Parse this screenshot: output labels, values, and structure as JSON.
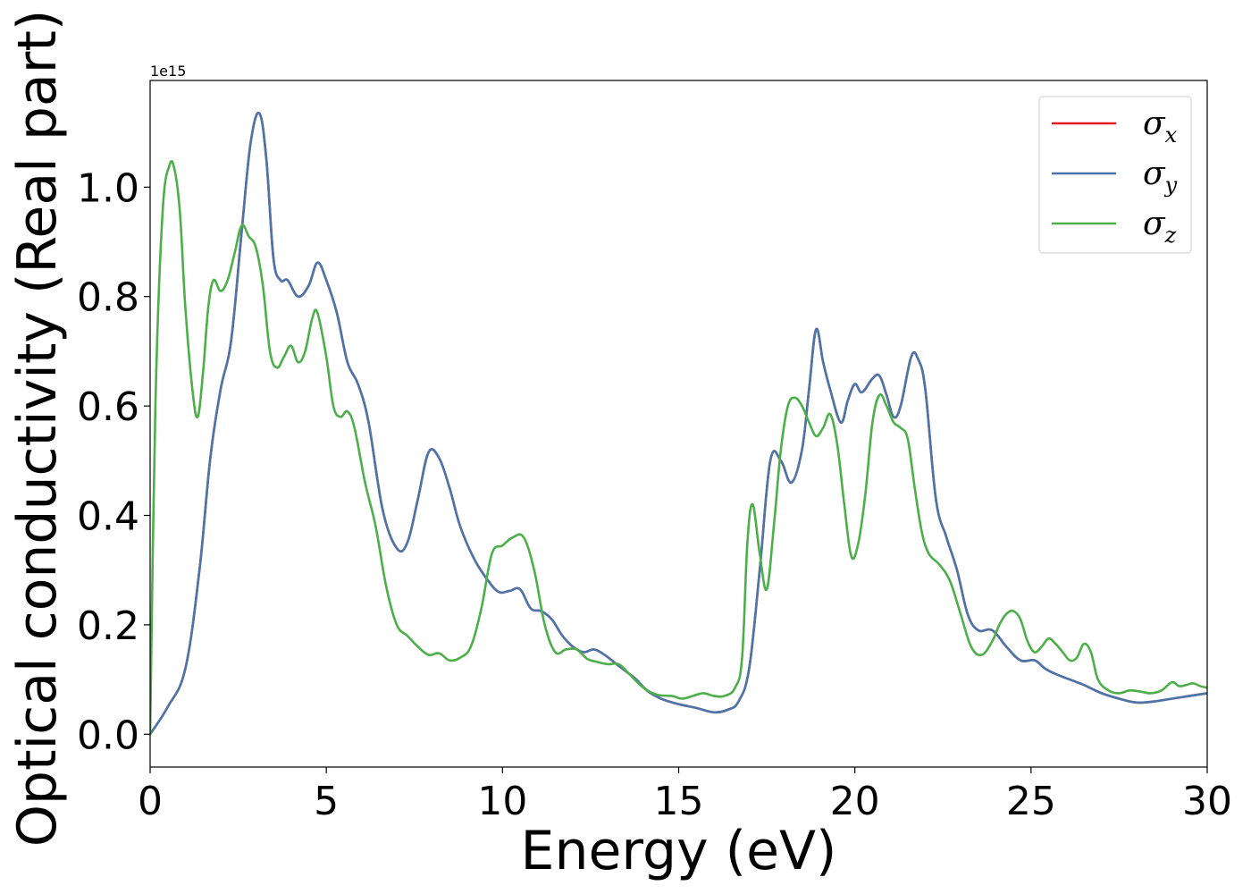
{
  "chart_data": {
    "type": "line",
    "xlabel": "Energy (eV)",
    "ylabel": "Optical conductivity (Real part)",
    "y_offset_text": "1e15",
    "xlim": [
      0,
      30
    ],
    "ylim": [
      -0.06,
      1.195
    ],
    "xticks": [
      0,
      5,
      10,
      15,
      20,
      25,
      30
    ],
    "xtick_labels": [
      "0",
      "5",
      "10",
      "15",
      "20",
      "25",
      "30"
    ],
    "yticks": [
      0.0,
      0.2,
      0.4,
      0.6,
      0.8,
      1.0
    ],
    "ytick_labels": [
      "0.0",
      "0.2",
      "0.4",
      "0.6",
      "0.8",
      "1.0"
    ],
    "grid": false,
    "legend_position": "top-right",
    "series": [
      {
        "name": "σx",
        "legend_symbol": "σ",
        "legend_subscript": "x",
        "color": "#e41a1c",
        "x": [
          0,
          0.5,
          1.0,
          1.4,
          1.7,
          2.0,
          2.3,
          2.6,
          2.85,
          3.1,
          3.3,
          3.5,
          3.7,
          3.9,
          4.2,
          4.5,
          4.75,
          5.0,
          5.3,
          5.6,
          5.9,
          6.2,
          6.6,
          7.0,
          7.3,
          7.6,
          7.9,
          8.2,
          8.5,
          8.8,
          9.2,
          9.6,
          9.9,
          10.2,
          10.5,
          10.8,
          11.1,
          11.4,
          11.7,
          12.0,
          12.3,
          12.6,
          12.9,
          13.2,
          13.5,
          13.8,
          14.1,
          14.5,
          15.0,
          15.5,
          16.0,
          16.4,
          16.7,
          17.0,
          17.3,
          17.6,
          17.9,
          18.2,
          18.5,
          18.7,
          18.9,
          19.1,
          19.3,
          19.6,
          19.8,
          20.0,
          20.2,
          20.5,
          20.7,
          20.9,
          21.1,
          21.3,
          21.6,
          21.8,
          22.0,
          22.3,
          22.6,
          22.9,
          23.2,
          23.5,
          23.9,
          24.3,
          24.7,
          25.1,
          25.4,
          25.7,
          26.1,
          26.5,
          27.0,
          27.5,
          28.0,
          28.5,
          29.0,
          29.5,
          30.0
        ],
        "y": [
          0.0,
          0.05,
          0.12,
          0.3,
          0.5,
          0.63,
          0.72,
          0.92,
          1.08,
          1.135,
          1.05,
          0.87,
          0.83,
          0.83,
          0.8,
          0.82,
          0.862,
          0.83,
          0.77,
          0.68,
          0.64,
          0.57,
          0.41,
          0.34,
          0.35,
          0.43,
          0.515,
          0.505,
          0.45,
          0.38,
          0.32,
          0.28,
          0.26,
          0.262,
          0.265,
          0.23,
          0.225,
          0.21,
          0.18,
          0.16,
          0.15,
          0.155,
          0.145,
          0.13,
          0.115,
          0.1,
          0.08,
          0.065,
          0.055,
          0.048,
          0.04,
          0.045,
          0.06,
          0.12,
          0.3,
          0.5,
          0.5,
          0.46,
          0.52,
          0.63,
          0.74,
          0.68,
          0.63,
          0.57,
          0.61,
          0.64,
          0.625,
          0.65,
          0.655,
          0.62,
          0.58,
          0.6,
          0.69,
          0.685,
          0.63,
          0.43,
          0.36,
          0.3,
          0.22,
          0.19,
          0.19,
          0.16,
          0.135,
          0.135,
          0.12,
          0.11,
          0.1,
          0.09,
          0.075,
          0.065,
          0.058,
          0.06,
          0.065,
          0.07,
          0.075
        ]
      },
      {
        "name": "σy",
        "legend_symbol": "σ",
        "legend_subscript": "y",
        "color": "#4a76ab",
        "x": [
          0,
          0.5,
          1.0,
          1.4,
          1.7,
          2.0,
          2.3,
          2.6,
          2.85,
          3.1,
          3.3,
          3.5,
          3.7,
          3.9,
          4.2,
          4.5,
          4.75,
          5.0,
          5.3,
          5.6,
          5.9,
          6.2,
          6.6,
          7.0,
          7.3,
          7.6,
          7.9,
          8.2,
          8.5,
          8.8,
          9.2,
          9.6,
          9.9,
          10.2,
          10.5,
          10.8,
          11.1,
          11.4,
          11.7,
          12.0,
          12.3,
          12.6,
          12.9,
          13.2,
          13.5,
          13.8,
          14.1,
          14.5,
          15.0,
          15.5,
          16.0,
          16.4,
          16.7,
          17.0,
          17.3,
          17.6,
          17.9,
          18.2,
          18.5,
          18.7,
          18.9,
          19.1,
          19.3,
          19.6,
          19.8,
          20.0,
          20.2,
          20.5,
          20.7,
          20.9,
          21.1,
          21.3,
          21.6,
          21.8,
          22.0,
          22.3,
          22.6,
          22.9,
          23.2,
          23.5,
          23.9,
          24.3,
          24.7,
          25.1,
          25.4,
          25.7,
          26.1,
          26.5,
          27.0,
          27.5,
          28.0,
          28.5,
          29.0,
          29.5,
          30.0
        ],
        "y": [
          0.0,
          0.05,
          0.12,
          0.3,
          0.5,
          0.63,
          0.72,
          0.92,
          1.08,
          1.135,
          1.05,
          0.87,
          0.83,
          0.83,
          0.8,
          0.82,
          0.862,
          0.83,
          0.77,
          0.68,
          0.64,
          0.57,
          0.41,
          0.34,
          0.35,
          0.43,
          0.515,
          0.505,
          0.45,
          0.38,
          0.32,
          0.28,
          0.26,
          0.262,
          0.265,
          0.23,
          0.225,
          0.21,
          0.18,
          0.16,
          0.15,
          0.155,
          0.145,
          0.13,
          0.115,
          0.1,
          0.08,
          0.065,
          0.055,
          0.048,
          0.04,
          0.045,
          0.06,
          0.12,
          0.3,
          0.5,
          0.5,
          0.46,
          0.52,
          0.63,
          0.74,
          0.68,
          0.63,
          0.57,
          0.61,
          0.64,
          0.625,
          0.65,
          0.655,
          0.62,
          0.58,
          0.6,
          0.69,
          0.685,
          0.63,
          0.43,
          0.36,
          0.3,
          0.22,
          0.19,
          0.19,
          0.16,
          0.135,
          0.135,
          0.12,
          0.11,
          0.1,
          0.09,
          0.075,
          0.065,
          0.058,
          0.06,
          0.065,
          0.07,
          0.075
        ]
      },
      {
        "name": "σz",
        "legend_symbol": "σ",
        "legend_subscript": "z",
        "color": "#4daf4a",
        "x": [
          0,
          0.15,
          0.35,
          0.55,
          0.7,
          0.85,
          1.0,
          1.2,
          1.35,
          1.5,
          1.65,
          1.8,
          2.0,
          2.2,
          2.4,
          2.6,
          2.8,
          3.0,
          3.2,
          3.4,
          3.6,
          3.8,
          4.0,
          4.2,
          4.4,
          4.6,
          4.75,
          5.0,
          5.2,
          5.4,
          5.6,
          5.8,
          6.1,
          6.4,
          6.7,
          7.0,
          7.3,
          7.6,
          7.9,
          8.2,
          8.5,
          8.8,
          9.1,
          9.4,
          9.7,
          10.0,
          10.3,
          10.6,
          10.9,
          11.2,
          11.5,
          11.8,
          12.1,
          12.4,
          12.7,
          13.0,
          13.3,
          13.6,
          14.0,
          14.4,
          14.8,
          15.1,
          15.4,
          15.7,
          16.0,
          16.3,
          16.6,
          16.8,
          16.95,
          17.1,
          17.3,
          17.5,
          17.7,
          17.9,
          18.1,
          18.3,
          18.5,
          18.7,
          18.9,
          19.1,
          19.3,
          19.5,
          19.7,
          19.9,
          20.1,
          20.3,
          20.5,
          20.7,
          20.9,
          21.1,
          21.3,
          21.5,
          21.7,
          21.9,
          22.1,
          22.4,
          22.7,
          23.0,
          23.3,
          23.6,
          23.9,
          24.1,
          24.3,
          24.5,
          24.7,
          24.9,
          25.1,
          25.3,
          25.5,
          25.7,
          25.9,
          26.1,
          26.3,
          26.5,
          26.7,
          26.9,
          27.2,
          27.5,
          27.8,
          28.1,
          28.4,
          28.7,
          29.0,
          29.2,
          29.4,
          29.6,
          29.8,
          30.0
        ],
        "y": [
          0.0,
          0.6,
          0.95,
          1.04,
          1.03,
          0.95,
          0.78,
          0.63,
          0.58,
          0.66,
          0.78,
          0.83,
          0.81,
          0.83,
          0.88,
          0.93,
          0.91,
          0.89,
          0.82,
          0.7,
          0.67,
          0.69,
          0.71,
          0.68,
          0.7,
          0.76,
          0.77,
          0.69,
          0.6,
          0.58,
          0.59,
          0.56,
          0.46,
          0.38,
          0.27,
          0.2,
          0.18,
          0.16,
          0.145,
          0.148,
          0.135,
          0.14,
          0.16,
          0.23,
          0.33,
          0.345,
          0.36,
          0.36,
          0.3,
          0.2,
          0.15,
          0.155,
          0.155,
          0.138,
          0.132,
          0.128,
          0.128,
          0.11,
          0.085,
          0.072,
          0.07,
          0.065,
          0.07,
          0.075,
          0.07,
          0.07,
          0.085,
          0.14,
          0.35,
          0.42,
          0.33,
          0.265,
          0.38,
          0.52,
          0.6,
          0.615,
          0.6,
          0.57,
          0.545,
          0.56,
          0.585,
          0.53,
          0.42,
          0.325,
          0.35,
          0.44,
          0.57,
          0.62,
          0.6,
          0.57,
          0.56,
          0.54,
          0.45,
          0.37,
          0.33,
          0.31,
          0.28,
          0.22,
          0.16,
          0.145,
          0.17,
          0.2,
          0.22,
          0.225,
          0.21,
          0.17,
          0.15,
          0.16,
          0.175,
          0.165,
          0.15,
          0.135,
          0.14,
          0.165,
          0.15,
          0.1,
          0.08,
          0.075,
          0.08,
          0.078,
          0.075,
          0.08,
          0.095,
          0.088,
          0.09,
          0.093,
          0.088,
          0.085
        ]
      }
    ]
  }
}
